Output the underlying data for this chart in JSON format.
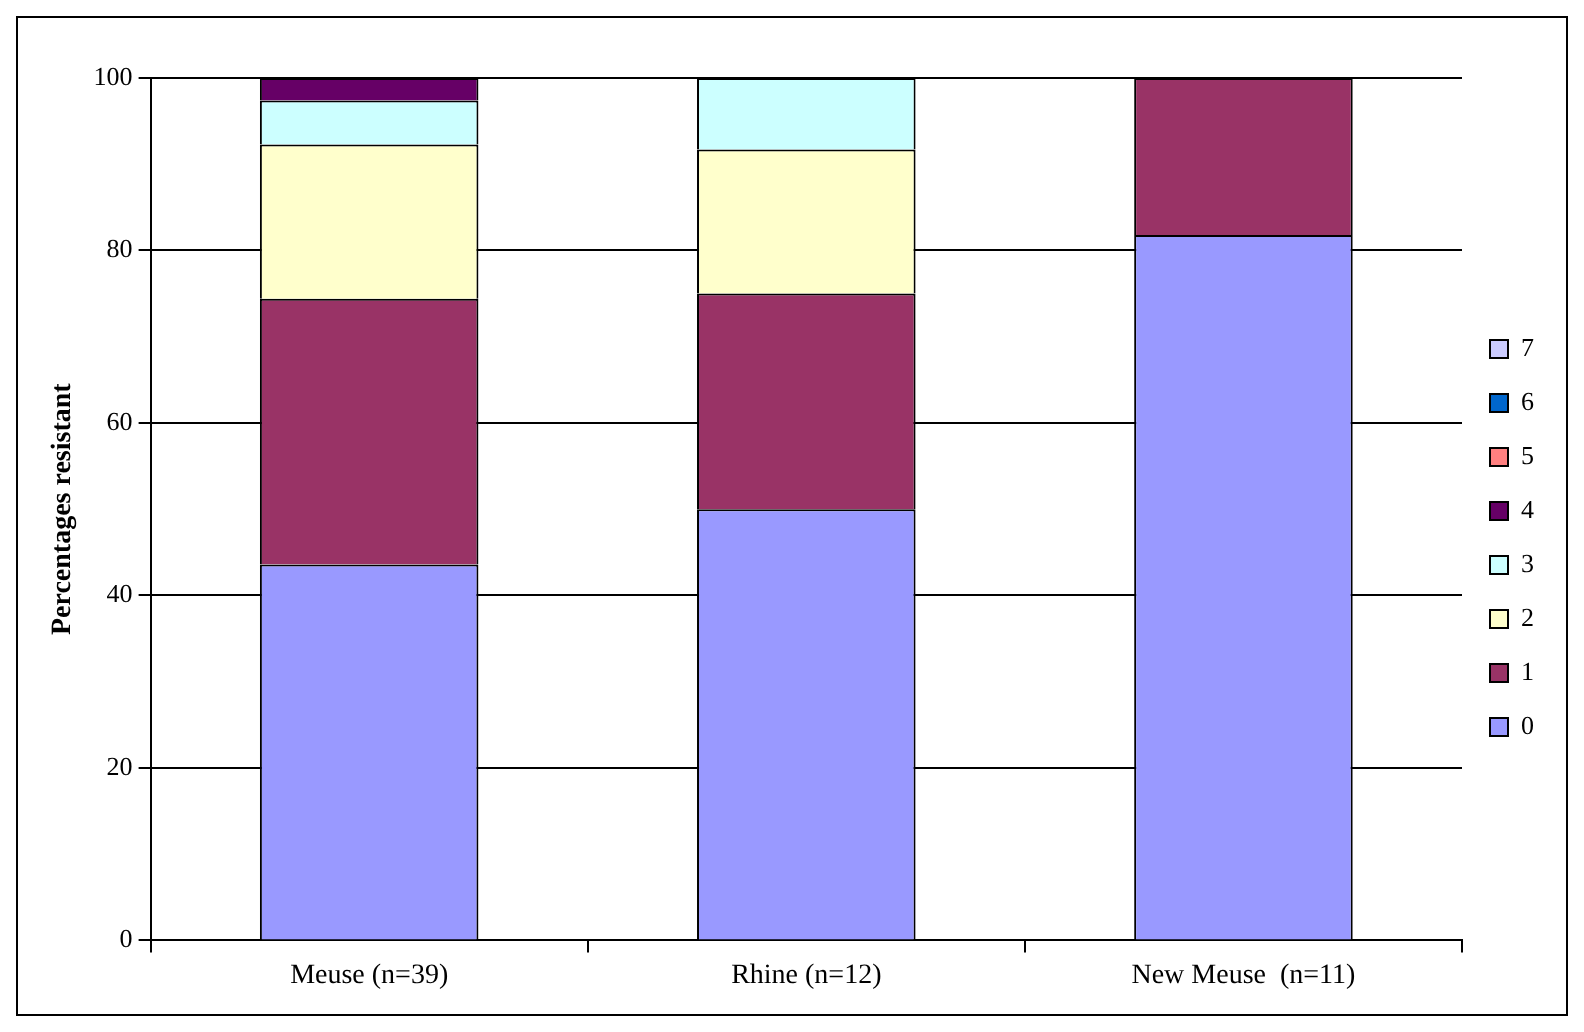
{
  "chart_data": {
    "type": "bar",
    "ylabel": "Percentages resistant",
    "categories": [
      "Meuse (n=39)",
      "Rhine (n=12)",
      "New Meuse  (n=11)"
    ],
    "stacked": true,
    "ylim": [
      0,
      100
    ],
    "yticks": [
      0,
      20,
      40,
      60,
      80,
      100
    ],
    "grid": "y",
    "legend": "right",
    "series": [
      {
        "name": "0",
        "color": "#9999ff",
        "values": [
          43.6,
          50,
          81.8
        ]
      },
      {
        "name": "1",
        "color": "#993366",
        "values": [
          30.8,
          25,
          18.2
        ]
      },
      {
        "name": "2",
        "color": "#ffffcc",
        "values": [
          17.9,
          16.7,
          0
        ]
      },
      {
        "name": "3",
        "color": "#ccffff",
        "values": [
          5.1,
          8.3,
          0
        ]
      },
      {
        "name": "4",
        "color": "#660066",
        "values": [
          2.6,
          0,
          0
        ]
      },
      {
        "name": "5",
        "color": "#ff8080",
        "values": [
          0,
          0,
          0
        ]
      },
      {
        "name": "6",
        "color": "#0066cc",
        "values": [
          0,
          0,
          0
        ]
      },
      {
        "name": "7",
        "color": "#ccccff",
        "values": [
          0,
          0,
          0
        ]
      }
    ]
  }
}
